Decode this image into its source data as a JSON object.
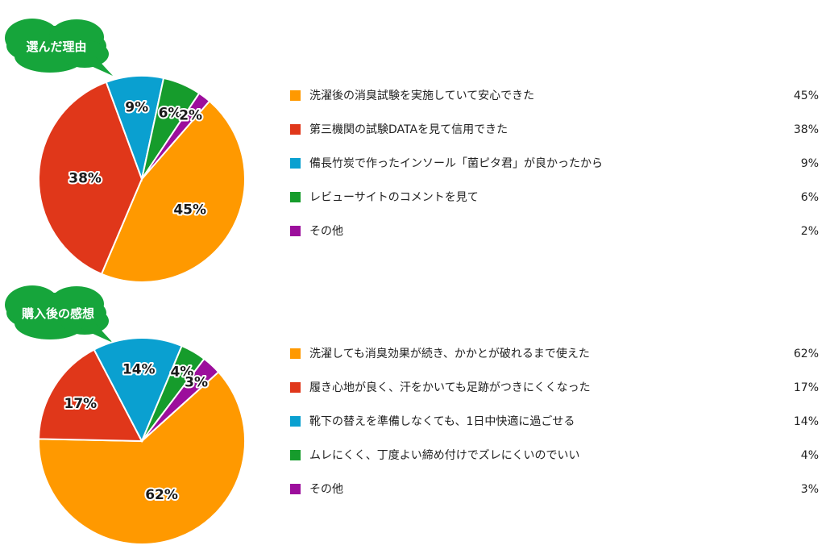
{
  "colors": {
    "bubble": "#16a53b",
    "slices": [
      "#ff9900",
      "#e0371a",
      "#0aa0d0",
      "#169c2c",
      "#9c0e9c"
    ]
  },
  "chart_data": [
    {
      "type": "pie",
      "title": "選んだ理由",
      "categories": [
        "洗濯後の消臭試験を実施していて安心できた",
        "第三機関の試験DATAを見て信用できた",
        "備長竹炭で作ったインソール「菌ピタ君」が良かったから",
        "レビューサイトのコメントを見て",
        "その他"
      ],
      "values": [
        45,
        38,
        9,
        6,
        2
      ],
      "value_labels": [
        "45%",
        "38%",
        "9%",
        "6%",
        "2%"
      ],
      "legend_placement": "right"
    },
    {
      "type": "pie",
      "title": "購入後の感想",
      "categories": [
        "洗濯しても消臭効果が続き、かかとが破れるまで使えた",
        "履き心地が良く、汗をかいても足跡がつきにくくなった",
        "靴下の替えを準備しなくても、1日中快適に過ごせる",
        "ムレにくく、丁度よい締め付けでズレにくいのでいい",
        "その他"
      ],
      "values": [
        62,
        17,
        14,
        4,
        3
      ],
      "value_labels": [
        "62%",
        "17%",
        "14%",
        "4%",
        "3%"
      ],
      "legend_placement": "right"
    }
  ]
}
